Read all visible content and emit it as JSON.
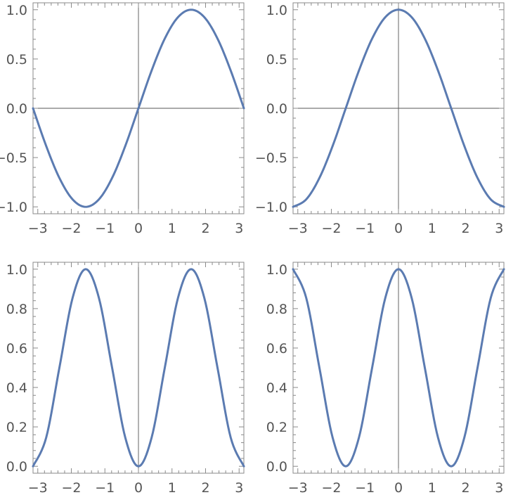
{
  "chart_data": [
    {
      "type": "line",
      "title": "",
      "xlabel": "",
      "ylabel": "",
      "xlim": [
        -3.14159,
        3.14159
      ],
      "ylim": [
        -1.0,
        1.0
      ],
      "xticks": [
        "-3",
        "-2",
        "-1",
        "0",
        "1",
        "2",
        "3"
      ],
      "yticks": [
        "-1.0",
        "-0.5",
        "0.0",
        "0.5",
        "1.0"
      ],
      "grid": false,
      "legend": "none",
      "color": "#5b7bb1",
      "series": [
        {
          "x": [
            -3.142,
            -2.749,
            -2.356,
            -1.963,
            -1.571,
            -1.178,
            -0.785,
            -0.393,
            0,
            0.393,
            0.785,
            1.178,
            1.571,
            1.963,
            2.356,
            2.749,
            3.142
          ],
          "values": [
            0,
            -0.383,
            -0.707,
            -0.924,
            -1.0,
            -0.924,
            -0.707,
            -0.383,
            0,
            0.383,
            0.707,
            0.924,
            1.0,
            0.924,
            0.707,
            0.383,
            0
          ]
        }
      ]
    },
    {
      "type": "line",
      "title": "",
      "xlabel": "",
      "ylabel": "",
      "xlim": [
        -3.14159,
        3.14159
      ],
      "ylim": [
        -1.0,
        1.0
      ],
      "xticks": [
        "-3",
        "-2",
        "-1",
        "0",
        "1",
        "2",
        "3"
      ],
      "yticks": [
        "-1.0",
        "-0.5",
        "0.0",
        "0.5",
        "1.0"
      ],
      "grid": false,
      "legend": "none",
      "color": "#5b7bb1",
      "series": [
        {
          "x": [
            -3.142,
            -2.749,
            -2.356,
            -1.963,
            -1.571,
            -1.178,
            -0.785,
            -0.393,
            0,
            0.393,
            0.785,
            1.178,
            1.571,
            1.963,
            2.356,
            2.749,
            3.142
          ],
          "values": [
            -1.0,
            -0.924,
            -0.707,
            -0.383,
            0,
            0.383,
            0.707,
            0.924,
            1.0,
            0.924,
            0.707,
            0.383,
            0,
            -0.383,
            -0.707,
            -0.924,
            -1.0
          ]
        }
      ]
    },
    {
      "type": "line",
      "title": "",
      "xlabel": "",
      "ylabel": "",
      "xlim": [
        -3.14159,
        3.14159
      ],
      "ylim": [
        0,
        1.0
      ],
      "xticks": [
        "-3",
        "-2",
        "-1",
        "0",
        "1",
        "2",
        "3"
      ],
      "yticks": [
        "0.0",
        "0.2",
        "0.4",
        "0.6",
        "0.8",
        "1.0"
      ],
      "grid": false,
      "legend": "none",
      "color": "#5b7bb1",
      "series": [
        {
          "x": [
            -3.142,
            -2.749,
            -2.356,
            -1.963,
            -1.571,
            -1.178,
            -0.785,
            -0.393,
            0,
            0.393,
            0.785,
            1.178,
            1.571,
            1.963,
            2.356,
            2.749,
            3.142
          ],
          "values": [
            0,
            0.146,
            0.5,
            0.854,
            1.0,
            0.854,
            0.5,
            0.146,
            0,
            0.146,
            0.5,
            0.854,
            1.0,
            0.854,
            0.5,
            0.146,
            0
          ]
        }
      ]
    },
    {
      "type": "line",
      "title": "",
      "xlabel": "",
      "ylabel": "",
      "xlim": [
        -3.14159,
        3.14159
      ],
      "ylim": [
        0,
        1.0
      ],
      "xticks": [
        "-3",
        "-2",
        "-1",
        "0",
        "1",
        "2",
        "3"
      ],
      "yticks": [
        "0.0",
        "0.2",
        "0.4",
        "0.6",
        "0.8",
        "1.0"
      ],
      "grid": false,
      "legend": "none",
      "color": "#5b7bb1",
      "series": [
        {
          "x": [
            -3.142,
            -2.749,
            -2.356,
            -1.963,
            -1.571,
            -1.178,
            -0.785,
            -0.393,
            0,
            0.393,
            0.785,
            1.178,
            1.571,
            1.963,
            2.356,
            2.749,
            3.142
          ],
          "values": [
            1.0,
            0.854,
            0.5,
            0.146,
            0,
            0.146,
            0.5,
            0.854,
            1.0,
            0.854,
            0.5,
            0.146,
            0,
            0.146,
            0.5,
            0.854,
            1.0
          ]
        }
      ]
    }
  ]
}
